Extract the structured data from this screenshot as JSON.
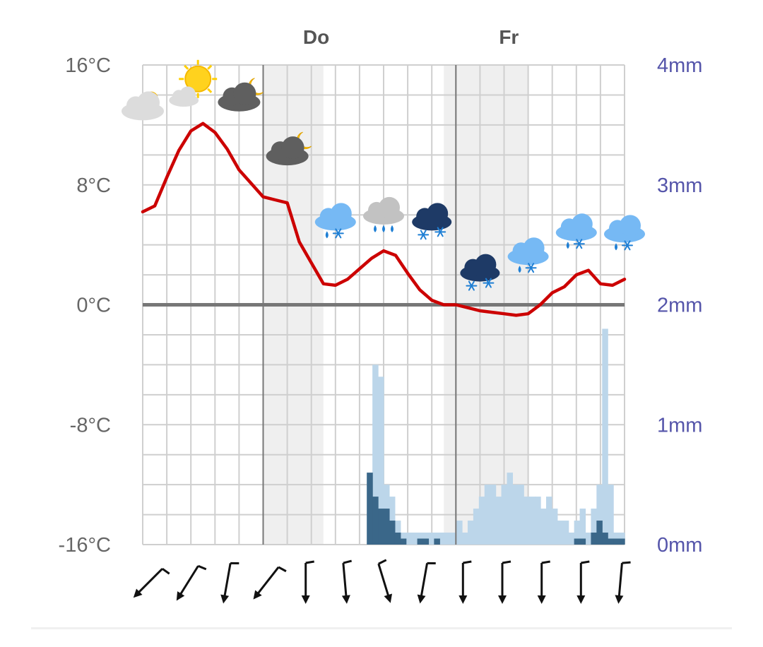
{
  "chart_data": {
    "type": "line",
    "title": "",
    "day_labels": [
      "Do",
      "Fr"
    ],
    "temperature_axis": {
      "ticks": [
        "16°C",
        "8°C",
        "0°C",
        "-8°C",
        "-16°C"
      ],
      "ylim": [
        -16,
        16
      ]
    },
    "precipitation_axis": {
      "ticks": [
        "4mm",
        "3mm",
        "2mm",
        "1mm",
        "0mm"
      ],
      "ylim": [
        0,
        4
      ]
    },
    "series": [
      {
        "kind": "temperature",
        "x": [
          0,
          0.5,
          1,
          1.5,
          2,
          2.5,
          3,
          3.5,
          4,
          4.5,
          5,
          5.5,
          6,
          6.5,
          7,
          7.5,
          8,
          8.5,
          9,
          9.5,
          10,
          10.5,
          11,
          11.5,
          12,
          12.5,
          13,
          13.5,
          14,
          14.5,
          15,
          15.5,
          16,
          16.5,
          17,
          17.5,
          18,
          18.5,
          19,
          19.5,
          20
        ],
        "values": [
          6.2,
          6.6,
          8.5,
          10.3,
          11.6,
          12.1,
          11.5,
          10.4,
          9.0,
          8.1,
          7.2,
          7.0,
          6.8,
          4.2,
          2.8,
          1.4,
          1.3,
          1.7,
          2.4,
          3.1,
          3.6,
          3.3,
          2.1,
          1.0,
          0.3,
          0.0,
          0.0,
          -0.2,
          -0.4,
          -0.5,
          -0.6,
          -0.7,
          -0.6,
          0.0,
          0.8,
          1.2,
          2.0,
          2.3,
          1.4,
          1.3,
          1.7
        ],
        "color": "#cc0000"
      },
      {
        "kind": "precipitation_total",
        "values": [
          0,
          0,
          0,
          0,
          0,
          0,
          0,
          0,
          0,
          0,
          0,
          0,
          0,
          0,
          0,
          0,
          0,
          0,
          0,
          0,
          0,
          0,
          0,
          0,
          0,
          0,
          0,
          0,
          0,
          0,
          0,
          0,
          0,
          0,
          0,
          0,
          0,
          0,
          0,
          0,
          0.6,
          1.5,
          1.4,
          0.5,
          0.4,
          0.2,
          0.1,
          0.1,
          0.1,
          0.1,
          0.1,
          0.1,
          0.1,
          0.1,
          0.1,
          0.1,
          0.2,
          0.1,
          0.2,
          0.3,
          0.4,
          0.5,
          0.5,
          0.4,
          0.5,
          0.6,
          0.5,
          0.5,
          0.4,
          0.4,
          0.4,
          0.3,
          0.4,
          0.3,
          0.2,
          0.2,
          0.1,
          0.2,
          0.3,
          0.1,
          0.3,
          0.5,
          1.8,
          0.5,
          0.1,
          0.1
        ],
        "color": "#bcd6ea"
      },
      {
        "kind": "precipitation_snow",
        "values": [
          0,
          0,
          0,
          0,
          0,
          0,
          0,
          0,
          0,
          0,
          0,
          0,
          0,
          0,
          0,
          0,
          0,
          0,
          0,
          0,
          0,
          0,
          0,
          0,
          0,
          0,
          0,
          0,
          0,
          0,
          0,
          0,
          0,
          0,
          0,
          0,
          0,
          0,
          0,
          0,
          0.6,
          0.4,
          0.3,
          0.3,
          0.2,
          0.1,
          0.05,
          0,
          0,
          0.05,
          0.05,
          0,
          0.05,
          0,
          0,
          0,
          0,
          0,
          0,
          0,
          0,
          0,
          0,
          0,
          0,
          0,
          0,
          0,
          0,
          0,
          0,
          0,
          0,
          0,
          0,
          0,
          0,
          0.05,
          0.05,
          0,
          0.1,
          0.2,
          0.1,
          0.05,
          0.05,
          0.05
        ],
        "color": "#3a6789"
      }
    ],
    "x_slots": 20,
    "night_bands": [
      [
        5,
        7.5
      ],
      [
        12.5,
        16
      ]
    ],
    "day_boundaries": [
      5,
      13
    ],
    "grid": true,
    "weather_icons": [
      {
        "slot": 0,
        "temp": 13.2,
        "icon": "partly-sunny-icon"
      },
      {
        "slot": 2,
        "temp": 14.5,
        "icon": "sunny-icon"
      },
      {
        "slot": 4,
        "temp": 13.8,
        "icon": "cloudy-night-icon"
      },
      {
        "slot": 6,
        "temp": 10.2,
        "icon": "cloudy-night-icon"
      },
      {
        "slot": 8,
        "temp": 5.8,
        "icon": "light-rain-snow-icon"
      },
      {
        "slot": 10,
        "temp": 6.2,
        "icon": "rain-icon"
      },
      {
        "slot": 12,
        "temp": 5.8,
        "icon": "heavy-snow-icon"
      },
      {
        "slot": 14,
        "temp": 2.4,
        "icon": "heavy-snow-icon"
      },
      {
        "slot": 16,
        "temp": 3.5,
        "icon": "light-rain-snow-icon"
      },
      {
        "slot": 18,
        "temp": 5.1,
        "icon": "light-rain-snow-icon"
      },
      {
        "slot": 20,
        "temp": 5.0,
        "icon": "light-rain-snow-icon"
      }
    ],
    "wind_arrows": [
      {
        "icon": "wind-arrow-icon",
        "direction_deg": 225
      },
      {
        "icon": "wind-arrow-icon",
        "direction_deg": 212
      },
      {
        "icon": "wind-arrow-icon",
        "direction_deg": 190
      },
      {
        "icon": "wind-arrow-icon",
        "direction_deg": 218
      },
      {
        "icon": "wind-arrow-icon",
        "direction_deg": 180
      },
      {
        "icon": "wind-arrow-icon",
        "direction_deg": 175
      },
      {
        "icon": "wind-arrow-icon",
        "direction_deg": 163
      },
      {
        "icon": "wind-arrow-icon",
        "direction_deg": 190
      },
      {
        "icon": "wind-arrow-icon",
        "direction_deg": 180
      },
      {
        "icon": "wind-arrow-icon",
        "direction_deg": 180
      },
      {
        "icon": "wind-arrow-icon",
        "direction_deg": 180
      },
      {
        "icon": "wind-arrow-icon",
        "direction_deg": 180
      },
      {
        "icon": "wind-arrow-icon",
        "direction_deg": 185
      }
    ]
  }
}
